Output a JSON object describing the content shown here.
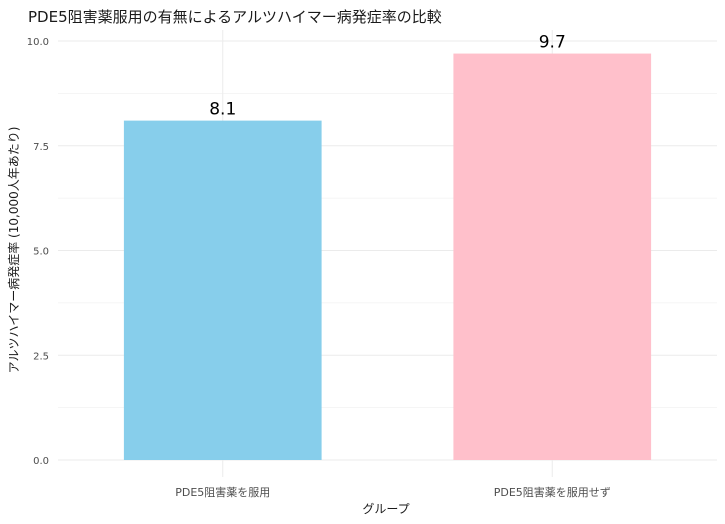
{
  "chart_data": {
    "type": "bar",
    "title": "PDE5阻害薬服用の有無によるアルツハイマー病発症率の比較",
    "xlabel": "グループ",
    "ylabel": "アルツハイマー病発症率 (10,000人年あたり)",
    "categories": [
      "PDE5阻害薬を服用",
      "PDE5阻害薬を服用せず"
    ],
    "values": [
      8.1,
      9.7
    ],
    "value_labels": [
      "8.1",
      "9.7"
    ],
    "colors": [
      "#87CEEB",
      "#FFC0CB"
    ],
    "ylim": [
      0,
      10
    ],
    "yticks": [
      0,
      2.5,
      5,
      7.5,
      10
    ],
    "ytick_labels": [
      "0.0",
      "2.5",
      "5.0",
      "7.5",
      "10.0"
    ],
    "grid": true,
    "legend": "none"
  }
}
